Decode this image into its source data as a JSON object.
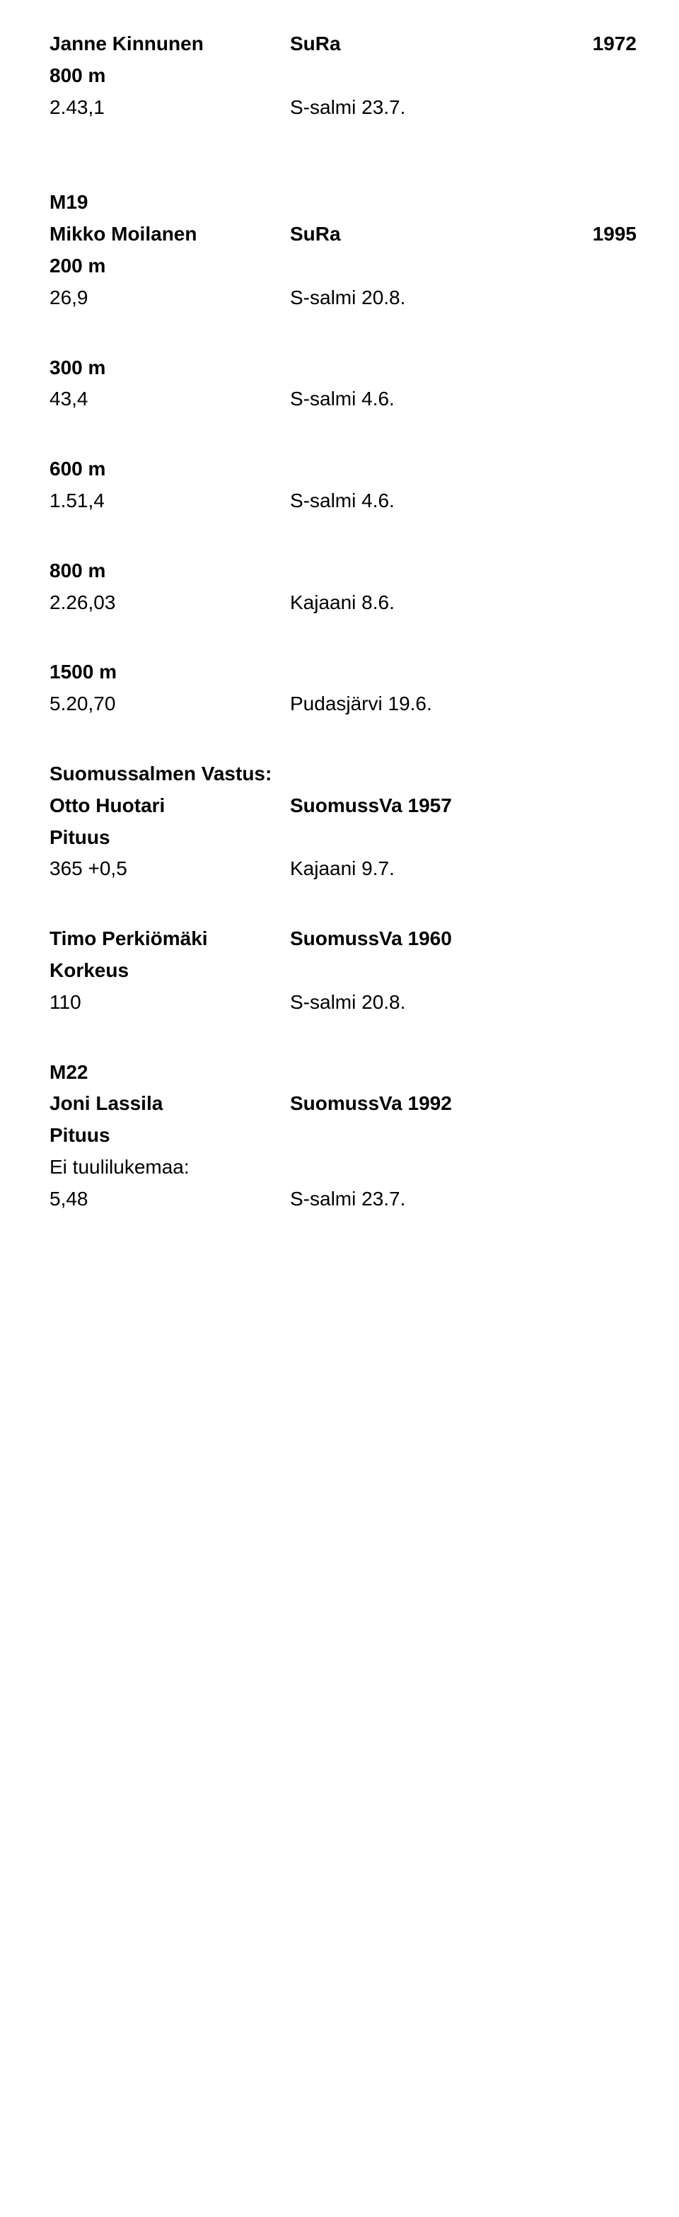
{
  "text_color": "#000000",
  "background_color": "#ffffff",
  "font_size_body": 28,
  "athletes": [
    {
      "name": "Janne Kinnunen",
      "club": "SuRa",
      "year": "1972",
      "sections": [
        {
          "heading": "800 m",
          "result_col1": "2.43,1",
          "result_col2": "S-salmi 23.7."
        }
      ]
    },
    {
      "group": "M19",
      "name": "Mikko Moilanen",
      "club": "SuRa",
      "year": "1995",
      "sections": [
        {
          "heading": "200 m",
          "result_col1": "26,9",
          "result_col2": "S-salmi 20.8."
        },
        {
          "heading": "300 m",
          "result_col1": "43,4",
          "result_col2": "S-salmi 4.6."
        },
        {
          "heading": "600 m",
          "result_col1": "1.51,4",
          "result_col2": "S-salmi 4.6."
        },
        {
          "heading": "800 m",
          "result_col1": "2.26,03",
          "result_col2": "Kajaani 8.6."
        },
        {
          "heading": "1500 m",
          "result_col1": "5.20,70",
          "result_col2": "Pudasjärvi 19.6."
        }
      ]
    },
    {
      "club_heading": "Suomussalmen Vastus:",
      "name": "Otto Huotari",
      "club": "SuomussVa",
      "year": "1957",
      "sections": [
        {
          "heading": "Pituus",
          "result_col1": "365 +0,5",
          "result_col2": "Kajaani 9.7."
        }
      ]
    },
    {
      "name": "Timo Perkiömäki",
      "club": "SuomussVa",
      "year": "1960",
      "sections": [
        {
          "heading": "Korkeus",
          "result_col1": "110",
          "result_col2": "S-salmi 20.8."
        }
      ]
    },
    {
      "group": "M22",
      "name": "Joni Lassila",
      "club": "SuomussVa ",
      "year": "1992",
      "sections": [
        {
          "heading": "Pituus",
          "note": "Ei tuulilukemaa:",
          "result_col1": "5,48",
          "result_col2": "S-salmi 23.7."
        }
      ]
    }
  ]
}
